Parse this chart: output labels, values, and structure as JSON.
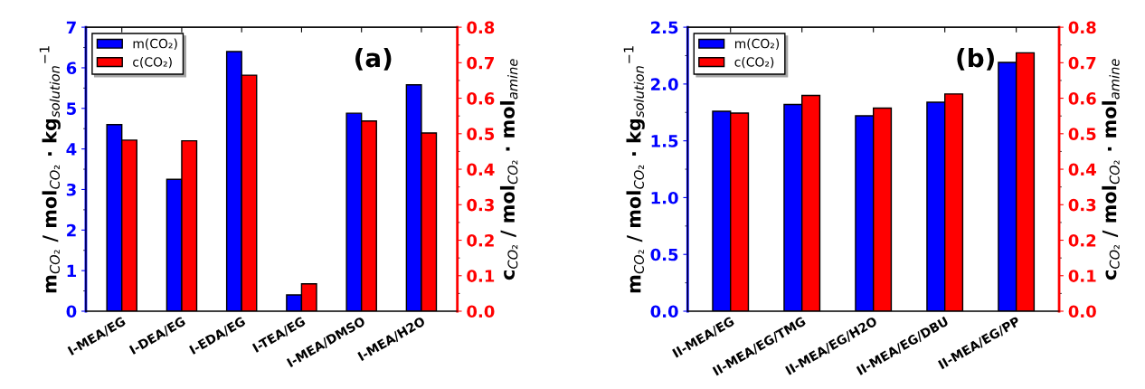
{
  "chart_data": [
    {
      "type": "bar",
      "categories": [
        "I-MEA/EG",
        "I-DEA/EG",
        "I-EDA/EG",
        "I-TEA/EG",
        "I-MEA/DMSO",
        "I-MEA/H2O"
      ],
      "ylabel": "m$_{CO₂}$ / mol$_{CO₂}$ · kg$_{solution}$$^{−1}$",
      "y2label": "c$_{CO₂}$ / mol$_{CO₂}$ · mol$_{amine}$",
      "annotations": [
        "(a)"
      ],
      "legend": "top left",
      "ylim": [
        0,
        7
      ],
      "yticks": [
        0,
        1,
        2,
        3,
        4,
        5,
        6,
        7
      ],
      "y2lim": [
        0,
        0.8
      ],
      "y2ticks": [
        {
          "value": 0,
          "label": "0.0"
        },
        0.1,
        0.2,
        0.3,
        0.4,
        0.5,
        0.6,
        0.7,
        0.8
      ],
      "series": [
        {
          "name": "m(CO₂)",
          "color": "#0000ff",
          "values": [
            4.6,
            3.25,
            6.4,
            0.4,
            4.88,
            5.58
          ]
        },
        {
          "name": "c(CO₂)",
          "color": "#ff0000",
          "axis": "y2",
          "values": [
            0.482,
            0.48,
            0.665,
            0.077,
            0.536,
            0.502
          ]
        }
      ]
    },
    {
      "type": "bar",
      "categories": [
        "II-MEA/EG",
        "II-MEA/EG/TMG",
        "II-MEA/EG/H2O",
        "II-MEA/EG/DBU",
        "II-MEA/EG/PP"
      ],
      "ylabel": "m$_{CO₂}$ / mol$_{CO₂}$ · kg$_{solution}$$^{−1}$",
      "y2label": "c$_{CO₂}$ / mol$_{CO₂}$ · mol$_{amine}$",
      "annotations": [
        "(b)"
      ],
      "legend": "top left",
      "ylim": [
        0,
        2.5
      ],
      "yticks": [
        {
          "value": 0,
          "label": "0.0"
        },
        0.5,
        {
          "value": 1,
          "label": "1.0"
        },
        1.5,
        {
          "value": 2,
          "label": "2.0"
        },
        2.5
      ],
      "y2lim": [
        0,
        0.8
      ],
      "y2ticks": [
        {
          "value": 0,
          "label": "0.0"
        },
        0.1,
        0.2,
        0.3,
        0.4,
        0.5,
        0.6,
        0.7,
        0.8
      ],
      "series": [
        {
          "name": "m(CO₂)",
          "color": "#0000ff",
          "values": [
            1.76,
            1.82,
            1.72,
            1.84,
            2.19
          ]
        },
        {
          "name": "c(CO₂)",
          "color": "#ff0000",
          "axis": "y2",
          "values": [
            0.558,
            0.608,
            0.572,
            0.612,
            0.728
          ]
        }
      ]
    }
  ]
}
